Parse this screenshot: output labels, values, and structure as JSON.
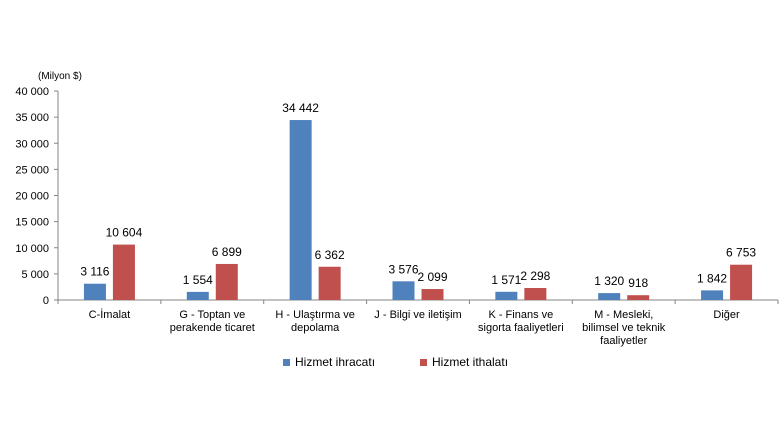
{
  "chart_data": {
    "type": "bar",
    "unit_label": "(Milyon  $)",
    "categories": [
      [
        "C-İmalat"
      ],
      [
        "G - Toptan ve",
        "perakende ticaret"
      ],
      [
        "H - Ulaştırma ve",
        "depolama"
      ],
      [
        "J - Bilgi ve iletişim"
      ],
      [
        "K - Finans ve",
        "sigorta faaliyetleri"
      ],
      [
        "M - Mesleki,",
        "bilimsel ve teknik",
        "faaliyetler"
      ],
      [
        "Diğer"
      ]
    ],
    "series": [
      {
        "name": "Hizmet ihracatı",
        "color": "#4f81bd",
        "values": [
          3116,
          1554,
          34442,
          3576,
          1571,
          1320,
          1842
        ],
        "labels": [
          "3 116",
          "1 554",
          "34 442",
          "3 576",
          "1 571",
          "1 320",
          "1 842"
        ]
      },
      {
        "name": "Hizmet ithalatı",
        "color": "#c0504d",
        "values": [
          10604,
          6899,
          6362,
          2099,
          2298,
          918,
          6753
        ],
        "labels": [
          "10 604",
          "6 899",
          "6 362",
          "2 099",
          "2 298",
          "918",
          "6 753"
        ]
      }
    ],
    "ylim": [
      0,
      40000
    ],
    "yticks": [
      0,
      5000,
      10000,
      15000,
      20000,
      25000,
      30000,
      35000,
      40000
    ],
    "ytick_labels": [
      "0",
      "5 000",
      "10 000",
      "15 000",
      "20 000",
      "25 000",
      "30 000",
      "35 000",
      "40 000"
    ],
    "grid": false,
    "legend": "bottom"
  }
}
